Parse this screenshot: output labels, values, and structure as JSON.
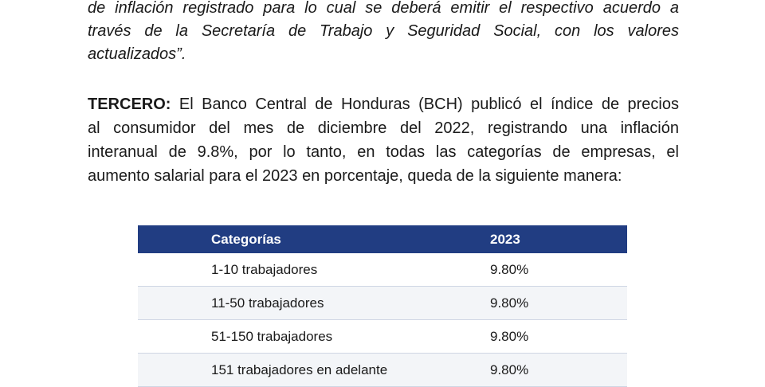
{
  "quote": {
    "lines": [
      "de inflación registrado para lo cual se deberá emitir el respectivo acuerdo a",
      "través de la Secretaría de Trabajo y Seguridad Social, con los valores",
      "actualizados”."
    ]
  },
  "paragraph": {
    "lead": "TERCERO:",
    "line1_rest": " El Banco Central de Honduras (BCH) publicó el índice de precios",
    "line2": "al consumidor del mes de diciembre del 2022, registrando una inflación",
    "line3": "interanual de 9.8%, por lo tanto, en todas las categorías de empresas, el",
    "line4": "aumento salarial para el 2023 en porcentaje, queda de la siguiente manera:"
  },
  "table": {
    "headers": [
      "Categorías",
      "2023"
    ],
    "rows": [
      [
        "1-10 trabajadores",
        "9.80%"
      ],
      [
        "11-50 trabajadores",
        "9.80%"
      ],
      [
        "51-150 trabajadores",
        "9.80%"
      ],
      [
        "151 trabajadores en adelante",
        "9.80%"
      ]
    ]
  },
  "colors": {
    "header_bg": "#213d82",
    "header_text": "#ffffff"
  }
}
